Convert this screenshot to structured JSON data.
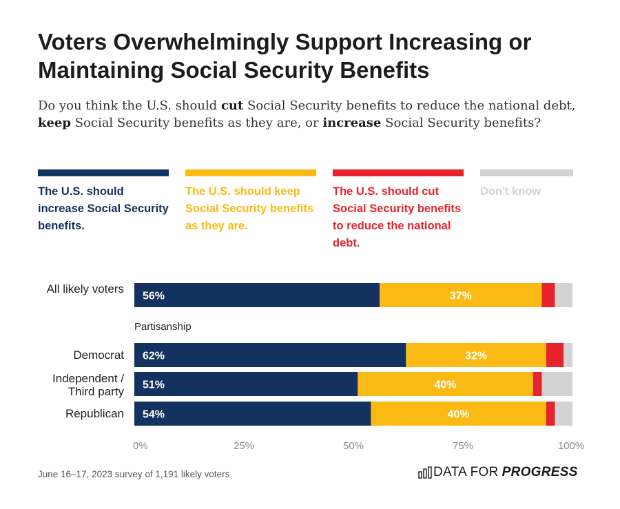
{
  "title": "Voters Overwhelmingly Support Increasing or Maintaining Social Security Benefits",
  "subtitle": {
    "p1": "Do you think the U.S. should ",
    "b1": "cut",
    "p2": " Social Security benefits to reduce the national debt, ",
    "b2": "keep",
    "p3": " Social Security benefits as they are, or ",
    "b3": "increase",
    "p4": " Social Security benefits?"
  },
  "colors": {
    "increase": "#13325f",
    "keep": "#fbb913",
    "cut": "#e8232b",
    "dont_know": "#d3d3d6"
  },
  "group_label": "Partisanship",
  "footer": {
    "note": "June 16–17, 2023 survey of 1,191 likely voters",
    "brand_plain": "DATA FOR",
    "brand_strong": "PROGRESS"
  },
  "chart_data": {
    "type": "bar",
    "orientation": "horizontal",
    "stacked": true,
    "xlim": [
      0,
      100
    ],
    "x_ticks": [
      "0%",
      "25%",
      "50%",
      "75%",
      "100%"
    ],
    "x_tick_values": [
      0,
      25,
      50,
      75,
      100
    ],
    "legend_position": "top",
    "categories": [
      "All likely voters",
      "Democrat",
      "Independent / Third party",
      "Republican"
    ],
    "series": [
      {
        "name": "The U.S. should increase Social Security benefits.",
        "key": "increase",
        "values": [
          56,
          62,
          51,
          54
        ],
        "labels": [
          "56%",
          "62%",
          "51%",
          "54%"
        ]
      },
      {
        "name": "The U.S. should keep Social Security benefits as they are.",
        "key": "keep",
        "values": [
          37,
          32,
          40,
          40
        ],
        "labels": [
          "37%",
          "32%",
          "40%",
          "40%"
        ]
      },
      {
        "name": "The U.S. should cut Social Security benefits to reduce the national debt.",
        "key": "cut",
        "values": [
          3,
          4,
          2,
          2
        ],
        "labels": [
          "",
          "",
          "",
          ""
        ]
      },
      {
        "name": "Don't know",
        "key": "dont_know",
        "values": [
          4,
          2,
          7,
          4
        ],
        "labels": [
          "",
          "",
          "",
          ""
        ]
      }
    ]
  }
}
